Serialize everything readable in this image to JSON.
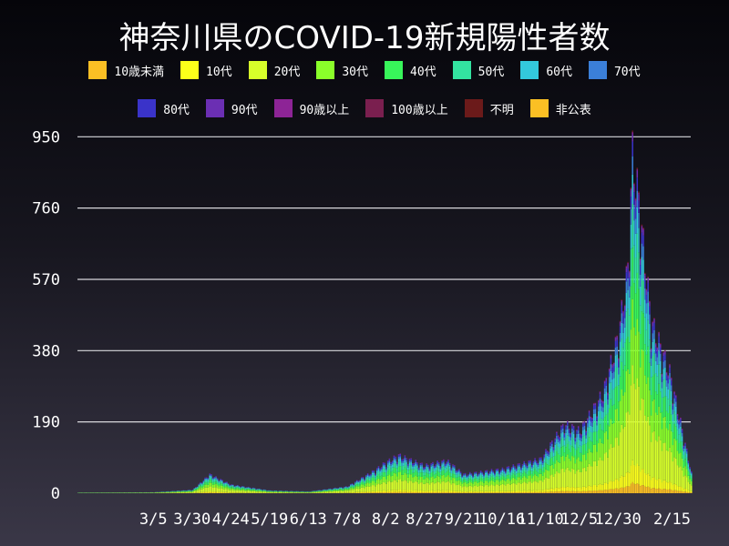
{
  "chart_data": {
    "type": "bar",
    "stacked": true,
    "title": "神奈川県のCOVID-19新規陽性者数",
    "xlabel": "",
    "ylabel": "",
    "ylim": [
      0,
      975
    ],
    "yticks": [
      0,
      190,
      380,
      570,
      760,
      950
    ],
    "xtick_labels": [
      "3/5",
      "3/30",
      "4/24",
      "5/19",
      "6/13",
      "7/8",
      "8/2",
      "8/27",
      "9/21",
      "10/16",
      "11/10",
      "12/5",
      "12/30",
      "2/15"
    ],
    "grid": true,
    "legend_position": "top",
    "series": [
      {
        "name": "10歳未満",
        "color": "#fbbf24"
      },
      {
        "name": "10代",
        "color": "#fcff1a"
      },
      {
        "name": "20代",
        "color": "#d7ff2a"
      },
      {
        "name": "30代",
        "color": "#8aff2a"
      },
      {
        "name": "40代",
        "color": "#38f55a"
      },
      {
        "name": "50代",
        "color": "#33e3a0"
      },
      {
        "name": "60代",
        "color": "#33c9dc"
      },
      {
        "name": "70代",
        "color": "#3b7fd8"
      },
      {
        "name": "80代",
        "color": "#3a33c9"
      },
      {
        "name": "90代",
        "color": "#6b2fb3"
      },
      {
        "name": "90歳以上",
        "color": "#8d2496"
      },
      {
        "name": "100歳以上",
        "color": "#7a1f4f"
      },
      {
        "name": "不明",
        "color": "#6b1a1a"
      },
      {
        "name": "非公表",
        "color": "#fbbf24"
      }
    ],
    "totals_approx": {
      "x": [
        "1/16",
        "3/5",
        "3/30",
        "4/10",
        "4/24",
        "5/19",
        "6/13",
        "7/8",
        "7/25",
        "8/2",
        "8/10",
        "8/27",
        "9/10",
        "9/21",
        "10/16",
        "11/10",
        "11/25",
        "12/5",
        "12/20",
        "12/30",
        "1/5",
        "1/8",
        "1/12",
        "1/20",
        "2/1",
        "2/15"
      ],
      "y": [
        2,
        3,
        10,
        55,
        25,
        8,
        5,
        20,
        65,
        90,
        110,
        80,
        95,
        55,
        70,
        100,
        200,
        180,
        290,
        460,
        650,
        980,
        850,
        500,
        350,
        60
      ]
    }
  }
}
